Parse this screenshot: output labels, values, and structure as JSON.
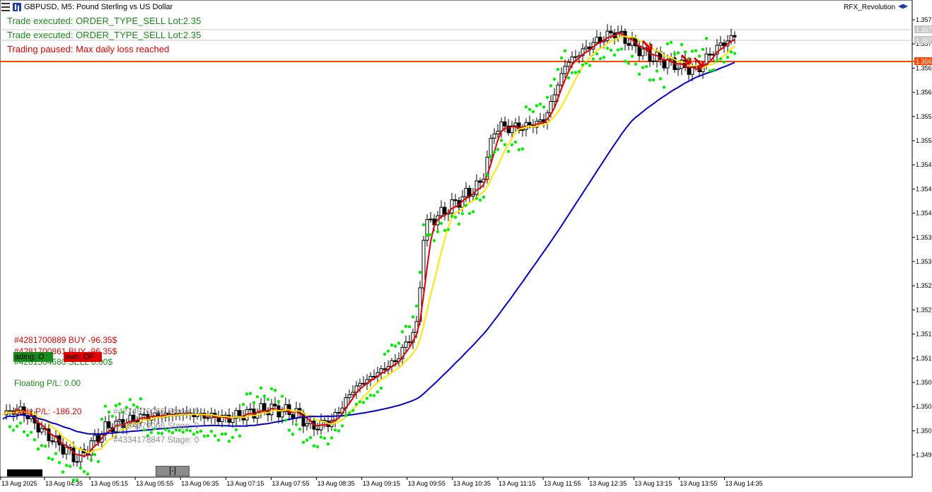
{
  "window": {
    "title": "GBPUSD, M5: Pound Sterling vs US Dollar",
    "ea_name": "RFX_Revolution"
  },
  "messages": [
    {
      "text": "Trade executed: ORDER_TYPE_SELL Lot:2.35",
      "color": "#1a8a1a"
    },
    {
      "text": "Trade executed: ORDER_TYPE_SELL Lot:2.35",
      "color": "#1a8a1a"
    },
    {
      "text": "Trading paused: Max daily loss reached",
      "color": "#e00000"
    }
  ],
  "positions": [
    {
      "text": "#4281700889 BUY -96.35$",
      "color": "#e00000"
    },
    {
      "text": "#4281700861 BUY -96.35$",
      "color": "#e00000"
    },
    {
      "text": "#4281504680 SELL 0.00$",
      "color": "#1a8a1a"
    }
  ],
  "buttons": {
    "trading": "ading: O",
    "news": "ews: OF",
    "collapse": "[-]"
  },
  "stats": {
    "floating": "Floating P/L: 0.00",
    "daily": "Daily P/L: -186.20"
  },
  "stages": [
    "#4274970066 Stage: 0",
    "#4334179066 Stage: 0",
    "#4334178847 Stage: 0"
  ],
  "price_axis": {
    "labels": [
      "1.357",
      "1.357",
      "1.356",
      "1.356",
      "1.355",
      "1.355",
      "1.354",
      "1.354",
      "1.354",
      "1.353",
      "1.353",
      "1.352",
      "1.352",
      "1.351",
      "1.351",
      "1.350",
      "1.350",
      "1.350",
      "1.349"
    ],
    "tags": [
      {
        "text": "1.357",
        "bg": "#c8c8c8"
      },
      {
        "text": "1.357",
        "bg": "#c8c8c8"
      },
      {
        "text": "1.356",
        "bg": "#ff4500"
      }
    ]
  },
  "time_axis": [
    "13 Aug 2025",
    "13 Aug 04:35",
    "13 Aug 05:15",
    "13 Aug 05:55",
    "13 Aug 06:35",
    "13 Aug 07:15",
    "13 Aug 07:55",
    "13 Aug 08:35",
    "13 Aug 09:15",
    "13 Aug 09:55",
    "13 Aug 10:35",
    "13 Aug 11:15",
    "13 Aug 11:55",
    "13 Aug 12:35",
    "13 Aug 13:15",
    "13 Aug 13:55",
    "13 Aug 14:35"
  ],
  "colors": {
    "fast_ma": "#e00000",
    "mid_ma": "#ffe600",
    "slow_ma": "#0000cc",
    "sar": "#00ee00",
    "paused_line": "#ff4500"
  }
}
